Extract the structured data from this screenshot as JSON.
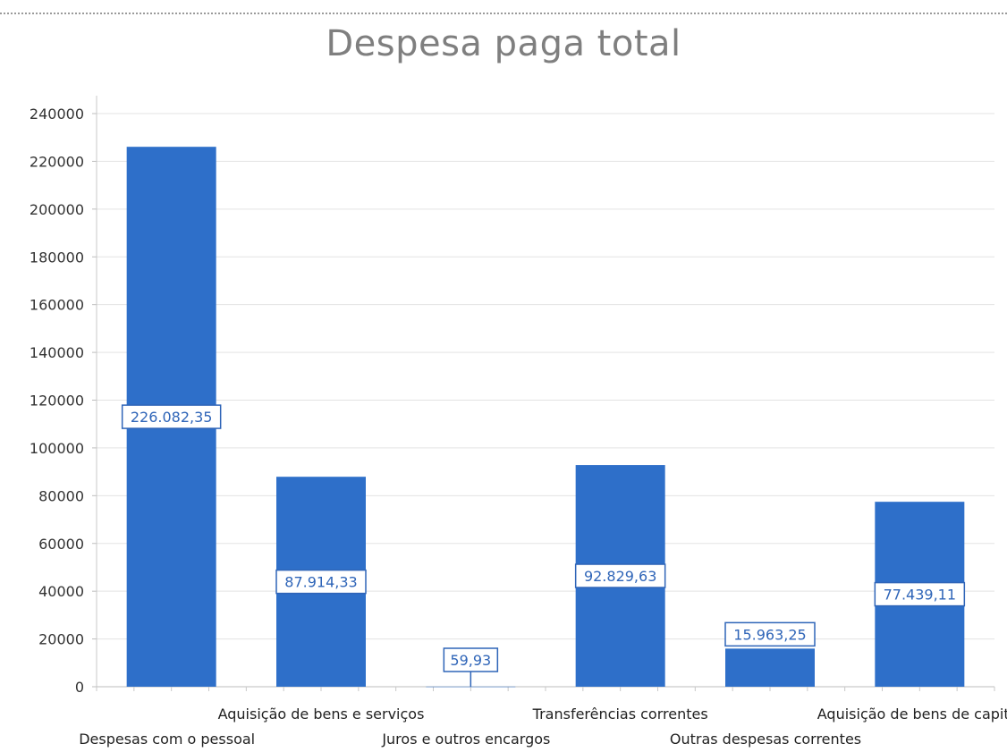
{
  "chart_data": {
    "type": "bar",
    "title": "Despesa paga total",
    "xlabel": "",
    "ylabel": "",
    "ylim": [
      0,
      240000
    ],
    "yticks": [
      0,
      20000,
      40000,
      60000,
      80000,
      100000,
      120000,
      140000,
      160000,
      180000,
      200000,
      220000,
      240000
    ],
    "categories": [
      "Despesas com o pessoal",
      "Aquisição de bens e serviços",
      "Juros e outros encargos",
      "Transferências correntes",
      "Outras despesas correntes",
      "Aquisição de bens de capital"
    ],
    "values": [
      226082.35,
      87914.33,
      59.93,
      92829.63,
      15963.25,
      77439.11
    ],
    "data_labels": [
      "226.082,35",
      "87.914,33",
      "59,93",
      "92.829,63",
      "15.963,25",
      "77.439,11"
    ],
    "grid": true,
    "legend": "none",
    "colors": {
      "bar": "#2e6fc9",
      "label_border": "#2f65b8",
      "grid": "#e3e3e3"
    }
  }
}
